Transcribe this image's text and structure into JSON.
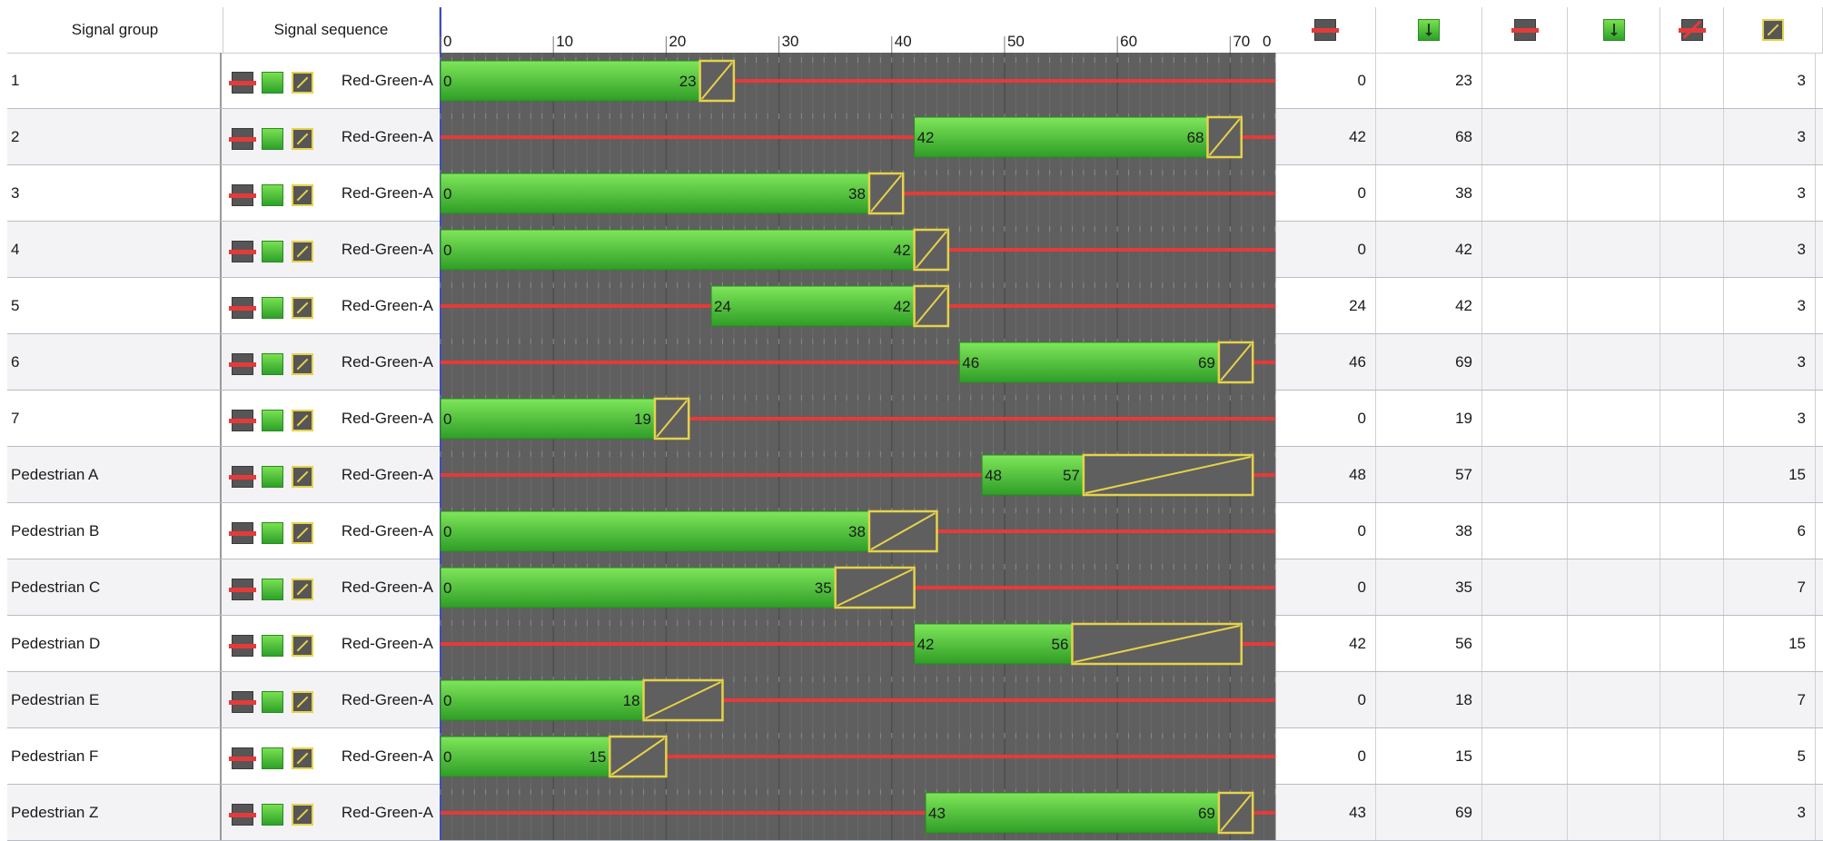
{
  "headers": {
    "signal_group": "Signal group",
    "signal_sequence": "Signal sequence",
    "axis_ticks": [
      "0",
      "10",
      "20",
      "30",
      "40",
      "50",
      "60",
      "70",
      "0"
    ],
    "icon_columns": [
      "red-begin-icon",
      "green-begin-icon",
      "red-end-icon",
      "green-end-icon",
      "red-amber-icon",
      "amber-duration-icon"
    ]
  },
  "axis": {
    "min": 0,
    "max": 74,
    "ticks": [
      0,
      10,
      20,
      30,
      40,
      50,
      60,
      70
    ],
    "cycle_end_label": "0"
  },
  "colors": {
    "chart_bg": "#5f5f5f",
    "green_top": "#7fe65a",
    "green_bottom": "#2f9e27",
    "red_line": "#e53a3a",
    "amber_border": "#e6d24a",
    "axis_line": "#3b4fc0"
  },
  "rows": [
    {
      "name": "1",
      "sequence": "Red-Green-A",
      "green_start": 0,
      "green_end": 23,
      "amber": 3,
      "red_end": "0",
      "green_end_val": "23",
      "amber_val": "3"
    },
    {
      "name": "2",
      "sequence": "Red-Green-A",
      "green_start": 42,
      "green_end": 68,
      "amber": 3,
      "red_end": "42",
      "green_end_val": "68",
      "amber_val": "3"
    },
    {
      "name": "3",
      "sequence": "Red-Green-A",
      "green_start": 0,
      "green_end": 38,
      "amber": 3,
      "red_end": "0",
      "green_end_val": "38",
      "amber_val": "3"
    },
    {
      "name": "4",
      "sequence": "Red-Green-A",
      "green_start": 0,
      "green_end": 42,
      "amber": 3,
      "red_end": "0",
      "green_end_val": "42",
      "amber_val": "3"
    },
    {
      "name": "5",
      "sequence": "Red-Green-A",
      "green_start": 24,
      "green_end": 42,
      "amber": 3,
      "red_end": "24",
      "green_end_val": "42",
      "amber_val": "3"
    },
    {
      "name": "6",
      "sequence": "Red-Green-A",
      "green_start": 46,
      "green_end": 69,
      "amber": 3,
      "red_end": "46",
      "green_end_val": "69",
      "amber_val": "3"
    },
    {
      "name": "7",
      "sequence": "Red-Green-A",
      "green_start": 0,
      "green_end": 19,
      "amber": 3,
      "red_end": "0",
      "green_end_val": "19",
      "amber_val": "3"
    },
    {
      "name": "Pedestrian A",
      "sequence": "Red-Green-A",
      "green_start": 48,
      "green_end": 57,
      "amber": 15,
      "red_end": "48",
      "green_end_val": "57",
      "amber_val": "15"
    },
    {
      "name": "Pedestrian B",
      "sequence": "Red-Green-A",
      "green_start": 0,
      "green_end": 38,
      "amber": 6,
      "red_end": "0",
      "green_end_val": "38",
      "amber_val": "6"
    },
    {
      "name": "Pedestrian C",
      "sequence": "Red-Green-A",
      "green_start": 0,
      "green_end": 35,
      "amber": 7,
      "red_end": "0",
      "green_end_val": "35",
      "amber_val": "7"
    },
    {
      "name": "Pedestrian D",
      "sequence": "Red-Green-A",
      "green_start": 42,
      "green_end": 56,
      "amber": 15,
      "red_end": "42",
      "green_end_val": "56",
      "amber_val": "15"
    },
    {
      "name": "Pedestrian E",
      "sequence": "Red-Green-A",
      "green_start": 0,
      "green_end": 18,
      "amber": 7,
      "red_end": "0",
      "green_end_val": "18",
      "amber_val": "7"
    },
    {
      "name": "Pedestrian F",
      "sequence": "Red-Green-A",
      "green_start": 0,
      "green_end": 15,
      "amber": 5,
      "red_end": "0",
      "green_end_val": "15",
      "amber_val": "5"
    },
    {
      "name": "Pedestrian Z",
      "sequence": "Red-Green-A",
      "green_start": 43,
      "green_end": 69,
      "amber": 3,
      "red_end": "43",
      "green_end_val": "69",
      "amber_val": "3"
    }
  ]
}
